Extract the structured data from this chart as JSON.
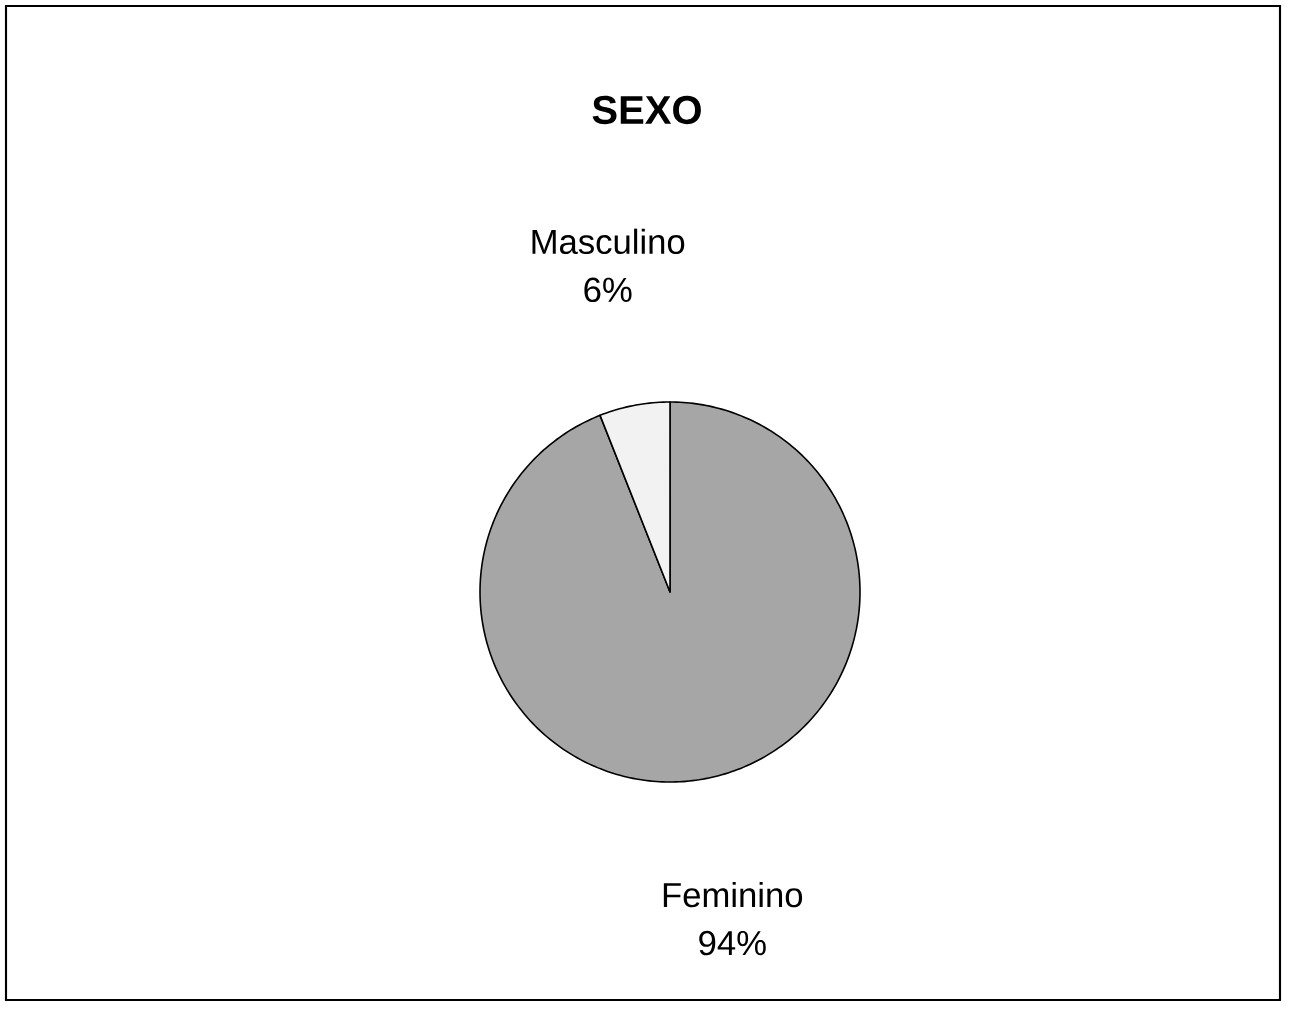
{
  "chart_data": {
    "type": "pie",
    "title": "SEXO",
    "categories": [
      "Feminino",
      "Masculino"
    ],
    "values": [
      94,
      6
    ],
    "colors": [
      "#a6a6a6",
      "#f2f2f2"
    ],
    "value_labels": [
      "94%",
      "6%"
    ]
  }
}
